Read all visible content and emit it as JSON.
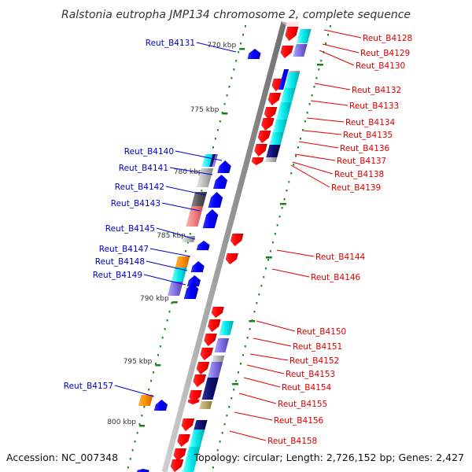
{
  "title": "Ralstonia eutropha JMP134 chromosome 2, complete sequence",
  "footer": {
    "accession": "Accession: NC_007348",
    "topology": "Topology: circular; Length: 2,726,152 bp; Genes: 2,427"
  },
  "ticks": [
    "770 kbp",
    "775 kbp",
    "780 kbp",
    "785 kbp",
    "790 kbp",
    "795 kbp",
    "800 kbp"
  ],
  "colors": {
    "forward_label": "#0000c8",
    "reverse_label": "#e00000",
    "backbone": "#999999",
    "tick": "#1a7f1a"
  },
  "forward_genes": [
    "Reut_B4131",
    "Reut_B4140",
    "Reut_B4141",
    "Reut_B4142",
    "Reut_B4143",
    "Reut_B4145",
    "Reut_B4147",
    "Reut_B4148",
    "Reut_B4149",
    "Reut_B4157"
  ],
  "reverse_genes": [
    "Reut_B4128",
    "Reut_B4129",
    "Reut_B4130",
    "Reut_B4132",
    "Reut_B4133",
    "Reut_B4134",
    "Reut_B4135",
    "Reut_B4136",
    "Reut_B4137",
    "Reut_B4138",
    "Reut_B4139",
    "Reut_B4144",
    "Reut_B4146",
    "Reut_B4150",
    "Reut_B4151",
    "Reut_B4152",
    "Reut_B4153",
    "Reut_B4154",
    "Reut_B4155",
    "Reut_B4156",
    "Reut_B4158"
  ]
}
